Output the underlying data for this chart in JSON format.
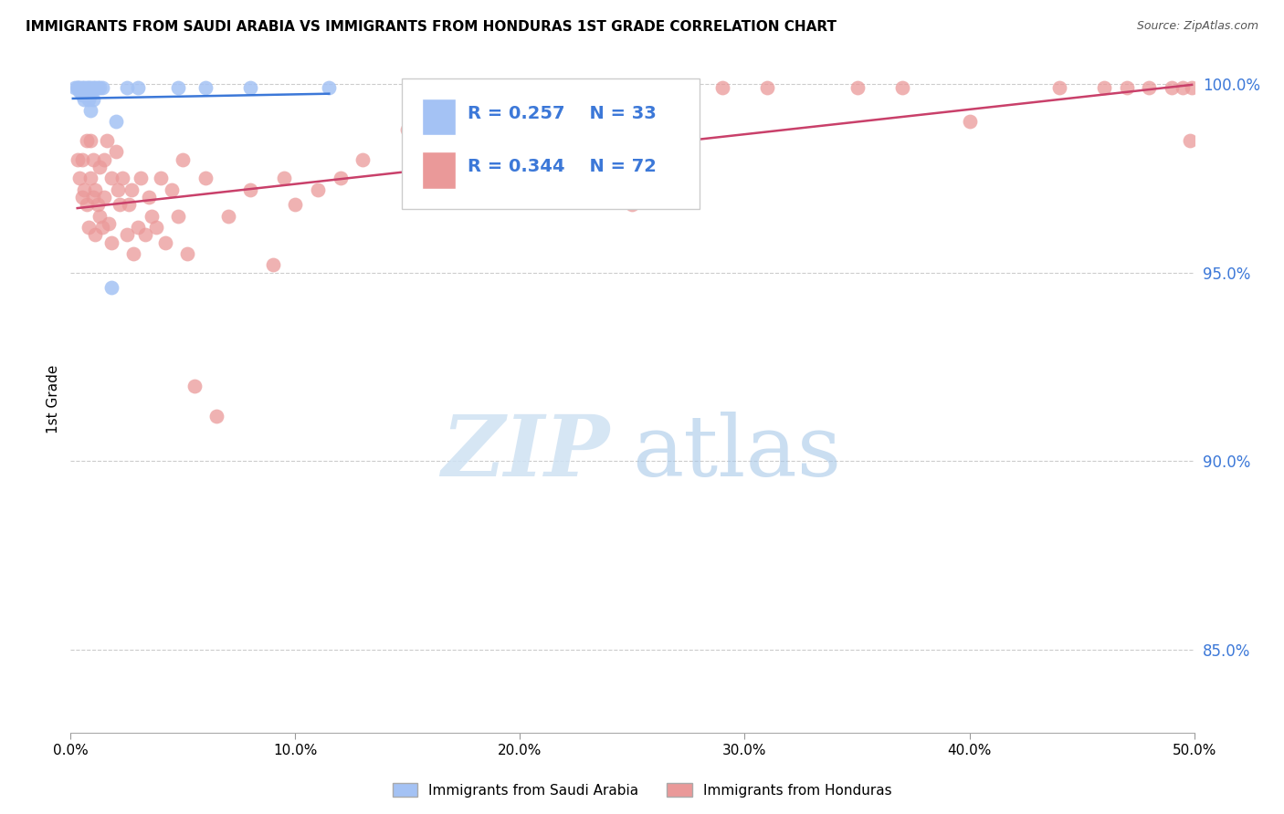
{
  "title": "IMMIGRANTS FROM SAUDI ARABIA VS IMMIGRANTS FROM HONDURAS 1ST GRADE CORRELATION CHART",
  "source": "Source: ZipAtlas.com",
  "ylabel_label": "1st Grade",
  "xlim": [
    0.0,
    0.5
  ],
  "ylim": [
    0.828,
    1.005
  ],
  "legend_saudi_R": "0.257",
  "legend_saudi_N": "33",
  "legend_honduras_R": "0.344",
  "legend_honduras_N": "72",
  "saudi_color": "#a4c2f4",
  "honduras_color": "#ea9999",
  "saudi_line_color": "#3c78d8",
  "honduras_line_color": "#c9406a",
  "legend_text_color": "#3c78d8",
  "ytick_color": "#3c78d8",
  "background_color": "#ffffff",
  "watermark_ZIP": "ZIP",
  "watermark_atlas": "atlas",
  "saudi_points_x": [
    0.002,
    0.003,
    0.003,
    0.004,
    0.004,
    0.005,
    0.005,
    0.005,
    0.006,
    0.006,
    0.006,
    0.007,
    0.007,
    0.007,
    0.008,
    0.008,
    0.009,
    0.009,
    0.009,
    0.01,
    0.01,
    0.011,
    0.012,
    0.013,
    0.014,
    0.018,
    0.02,
    0.025,
    0.03,
    0.048,
    0.06,
    0.08,
    0.115
  ],
  "saudi_points_y": [
    0.999,
    0.999,
    0.999,
    0.999,
    0.998,
    0.999,
    0.998,
    0.997,
    0.999,
    0.997,
    0.996,
    0.999,
    0.998,
    0.997,
    0.999,
    0.996,
    0.999,
    0.997,
    0.993,
    0.999,
    0.996,
    0.999,
    0.999,
    0.999,
    0.999,
    0.946,
    0.99,
    0.999,
    0.999,
    0.999,
    0.999,
    0.999,
    0.999
  ],
  "honduras_points_x": [
    0.003,
    0.004,
    0.005,
    0.005,
    0.006,
    0.007,
    0.007,
    0.008,
    0.009,
    0.009,
    0.01,
    0.01,
    0.011,
    0.011,
    0.012,
    0.013,
    0.013,
    0.014,
    0.015,
    0.015,
    0.016,
    0.017,
    0.018,
    0.018,
    0.02,
    0.021,
    0.022,
    0.023,
    0.025,
    0.026,
    0.027,
    0.028,
    0.03,
    0.031,
    0.033,
    0.035,
    0.036,
    0.038,
    0.04,
    0.042,
    0.045,
    0.048,
    0.05,
    0.052,
    0.055,
    0.06,
    0.065,
    0.07,
    0.08,
    0.09,
    0.095,
    0.1,
    0.11,
    0.12,
    0.13,
    0.15,
    0.16,
    0.2,
    0.25,
    0.29,
    0.31,
    0.35,
    0.37,
    0.4,
    0.44,
    0.46,
    0.47,
    0.48,
    0.49,
    0.495,
    0.498,
    0.499
  ],
  "honduras_points_y": [
    0.98,
    0.975,
    0.97,
    0.98,
    0.972,
    0.985,
    0.968,
    0.962,
    0.985,
    0.975,
    0.97,
    0.98,
    0.96,
    0.972,
    0.968,
    0.965,
    0.978,
    0.962,
    0.97,
    0.98,
    0.985,
    0.963,
    0.958,
    0.975,
    0.982,
    0.972,
    0.968,
    0.975,
    0.96,
    0.968,
    0.972,
    0.955,
    0.962,
    0.975,
    0.96,
    0.97,
    0.965,
    0.962,
    0.975,
    0.958,
    0.972,
    0.965,
    0.98,
    0.955,
    0.92,
    0.975,
    0.912,
    0.965,
    0.972,
    0.952,
    0.975,
    0.968,
    0.972,
    0.975,
    0.98,
    0.988,
    0.99,
    0.992,
    0.968,
    0.999,
    0.999,
    0.999,
    0.999,
    0.99,
    0.999,
    0.999,
    0.999,
    0.999,
    0.999,
    0.999,
    0.985,
    0.999
  ]
}
